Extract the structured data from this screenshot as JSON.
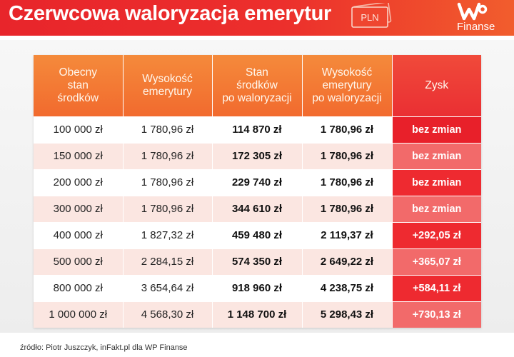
{
  "header": {
    "title": "Czerwcowa waloryzacja emerytur",
    "currency_badge": "PLN",
    "logo_mark": "WP",
    "logo_text": "Finanse",
    "colors": {
      "banner": "#e8252b",
      "accent_orange": "#f26a2e"
    }
  },
  "table": {
    "headers": [
      "Obecny\nstan\nśrodków",
      "Wysokość\nemerytury",
      "Stan\nśrodków\npo waloryzacji",
      "Wysokość\nemerytury\npo waloryzacji",
      "Zysk"
    ],
    "rows": [
      {
        "stan": "100 000 zł",
        "emerytura": "1 780,96 zł",
        "stan_po": "114 870 zł",
        "emerytura_po": "1 780,96 zł",
        "zysk": "bez zmian"
      },
      {
        "stan": "150 000 zł",
        "emerytura": "1 780,96 zł",
        "stan_po": "172 305 zł",
        "emerytura_po": "1 780,96 zł",
        "zysk": "bez zmian"
      },
      {
        "stan": "200 000 zł",
        "emerytura": "1 780,96 zł",
        "stan_po": "229 740 zł",
        "emerytura_po": "1 780,96 zł",
        "zysk": "bez zmian"
      },
      {
        "stan": "300 000 zł",
        "emerytura": "1 780,96 zł",
        "stan_po": "344 610 zł",
        "emerytura_po": "1 780,96 zł",
        "zysk": "bez zmian"
      },
      {
        "stan": "400 000 zł",
        "emerytura": "1 827,32 zł",
        "stan_po": "459 480 zł",
        "emerytura_po": "2 119,37 zł",
        "zysk": "+292,05 zł"
      },
      {
        "stan": "500 000 zł",
        "emerytura": "2 284,15 zł",
        "stan_po": "574 350 zł",
        "emerytura_po": "2 649,22 zł",
        "zysk": "+365,07 zł"
      },
      {
        "stan": "800 000 zł",
        "emerytura": "3 654,64 zł",
        "stan_po": "918 960 zł",
        "emerytura_po": "4 238,75 zł",
        "zysk": "+584,11 zł"
      },
      {
        "stan": "1 000 000 zł",
        "emerytura": "4 568,30 zł",
        "stan_po": "1 148 700 zł",
        "emerytura_po": "5 298,43 zł",
        "zysk": "+730,13 zł"
      }
    ],
    "gain_colors": [
      "#e8202a",
      "#f26a6a",
      "#ee2a30",
      "#f26a6a",
      "#ee2a30",
      "#f26a6a",
      "#ee2a30",
      "#f26a6a"
    ]
  },
  "source": "źródło: Piotr Juszczyk, inFakt.pl dla WP Finanse"
}
